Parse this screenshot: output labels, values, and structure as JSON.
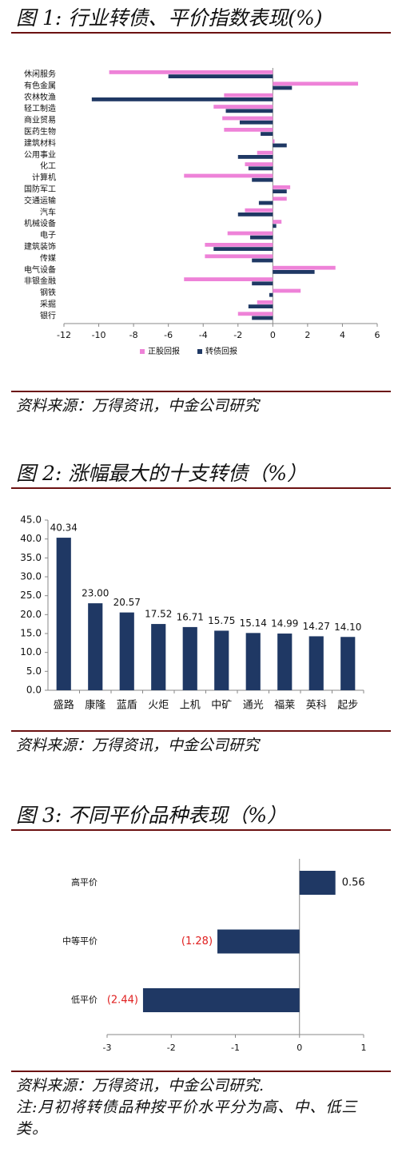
{
  "chart_data": [
    {
      "type": "barh",
      "title": "图 1: 行业转债、平价指数表现(%)",
      "categories": [
        "休闲服务",
        "有色金属",
        "农林牧渔",
        "轻工制造",
        "商业贸易",
        "医药生物",
        "建筑材料",
        "公用事业",
        "化工",
        "计算机",
        "国防军工",
        "交通运输",
        "汽车",
        "机械设备",
        "电子",
        "建筑装饰",
        "传媒",
        "电气设备",
        "非银金融",
        "钢铁",
        "采掘",
        "银行"
      ],
      "series": [
        {
          "name": "正股回报",
          "color": "#ee82d8",
          "values": [
            -9.4,
            4.9,
            -2.8,
            -3.4,
            -2.9,
            -2.8,
            0.1,
            -0.9,
            -1.6,
            -5.1,
            1.0,
            0.8,
            -1.6,
            0.5,
            -2.6,
            -3.9,
            -3.9,
            3.6,
            -5.1,
            1.6,
            -0.9,
            -2.0
          ]
        },
        {
          "name": "转债回报",
          "color": "#1f3864",
          "values": [
            -6.0,
            1.1,
            -10.4,
            -2.7,
            -1.9,
            -0.7,
            0.8,
            -2.0,
            -1.4,
            -1.2,
            0.8,
            -0.8,
            -2.0,
            0.2,
            -1.3,
            -3.4,
            -1.2,
            2.4,
            -1.2,
            -0.2,
            -1.4,
            -1.2
          ]
        }
      ],
      "xlim": [
        -12,
        6
      ],
      "xticks": [
        -12,
        -10,
        -8,
        -6,
        -4,
        -2,
        0,
        2,
        4,
        6
      ],
      "legend": "bottom",
      "source": "资料来源：万得资讯，中金公司研究"
    },
    {
      "type": "bar",
      "title": "图 2: 涨幅最大的十支转债（%）",
      "categories": [
        "盛路",
        "康隆",
        "蓝盾",
        "火炬",
        "上机",
        "中矿",
        "通光",
        "福莱",
        "英科",
        "起步"
      ],
      "values": [
        40.34,
        23.0,
        20.57,
        17.52,
        16.71,
        15.75,
        15.14,
        14.99,
        14.27,
        14.1
      ],
      "value_labels": [
        "40.34",
        "23.00",
        "20.57",
        "17.52",
        "16.71",
        "15.75",
        "15.14",
        "14.99",
        "14.27",
        "14.10"
      ],
      "color": "#1f3864",
      "ylim": [
        0,
        45
      ],
      "yticks": [
        {
          "value": 0,
          "label": "0.0"
        },
        {
          "value": 5,
          "label": "5.0"
        },
        {
          "value": 10,
          "label": "10.0"
        },
        {
          "value": 15,
          "label": "15.0"
        },
        {
          "value": 20,
          "label": "20.0"
        },
        {
          "value": 25,
          "label": "25.0"
        },
        {
          "value": 30,
          "label": "30.0"
        },
        {
          "value": 35,
          "label": "35.0"
        },
        {
          "value": 40,
          "label": "40.0"
        },
        {
          "value": 45,
          "label": "45.0"
        }
      ],
      "source": "资料来源：万得资讯，中金公司研究"
    },
    {
      "type": "barh",
      "title": "图 3: 不同平价品种表现（%）",
      "categories": [
        "高平价",
        "中等平价",
        "低平价"
      ],
      "values": [
        0.56,
        -1.28,
        -2.44
      ],
      "value_labels": [
        "0.56",
        "(1.28)",
        "(2.44)"
      ],
      "color": "#1f3864",
      "negative_label_color": "#e02020",
      "xlim": [
        -3,
        1
      ],
      "xticks": [
        -3,
        -2,
        -1,
        0,
        1
      ],
      "source": "资料来源：万得资讯，中金公司研究.",
      "note": "注:月初将转债品种按平价水平分为高、中、低三类。"
    }
  ]
}
